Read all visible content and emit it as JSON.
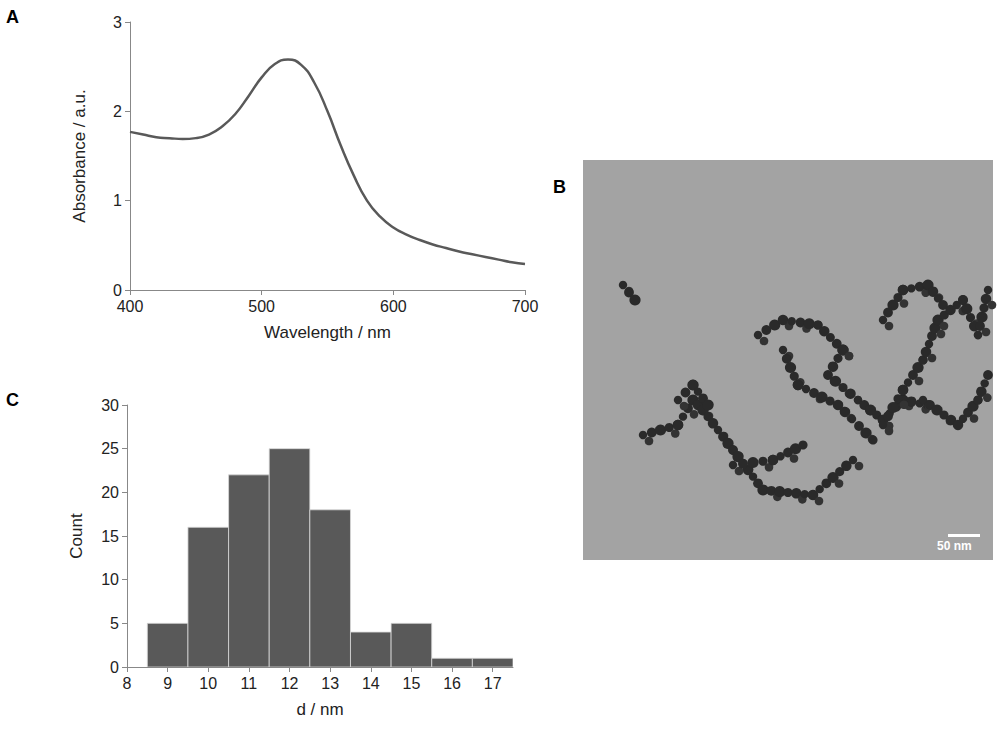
{
  "chart_data": [
    {
      "panel": "A",
      "type": "line",
      "x_label": "Wavelength / nm",
      "y_label": "Absorbance / a.u.",
      "x": [
        400,
        410,
        420,
        430,
        440,
        450,
        460,
        470,
        480,
        490,
        500,
        510,
        520,
        530,
        540,
        550,
        560,
        570,
        580,
        590,
        600,
        610,
        620,
        630,
        640,
        650,
        660,
        670,
        680,
        690,
        700
      ],
      "values": [
        1.77,
        1.74,
        1.71,
        1.7,
        1.69,
        1.7,
        1.74,
        1.83,
        1.97,
        2.17,
        2.38,
        2.53,
        2.58,
        2.52,
        2.32,
        2.0,
        1.62,
        1.28,
        1.0,
        0.82,
        0.7,
        0.62,
        0.56,
        0.51,
        0.47,
        0.43,
        0.4,
        0.37,
        0.34,
        0.31,
        0.29
      ],
      "color": "#595959",
      "xlim": [
        400,
        700
      ],
      "xticks": [
        400,
        500,
        600,
        700
      ],
      "ylim": [
        0,
        3
      ],
      "yticks": [
        0,
        1,
        2,
        3
      ],
      "grid": false
    },
    {
      "panel": "B",
      "type": "image",
      "annotations": [
        "50 nm"
      ]
    },
    {
      "panel": "C",
      "type": "histogram",
      "x_label": "d / nm",
      "y_label": "Count",
      "bins": [
        8.5,
        9.5,
        10.5,
        11.5,
        12.5,
        13.5,
        14.5,
        15.5,
        16.5,
        17.5
      ],
      "values": [
        5,
        16,
        22,
        25,
        18,
        4,
        5,
        1,
        1
      ],
      "color": "#595959",
      "xlim": [
        8,
        17.5
      ],
      "xticks": [
        8,
        9,
        10,
        11,
        12,
        13,
        14,
        15,
        16,
        17
      ],
      "ylim": [
        0,
        30
      ],
      "yticks": [
        0,
        5,
        10,
        15,
        20,
        25,
        30
      ],
      "grid": false
    }
  ]
}
